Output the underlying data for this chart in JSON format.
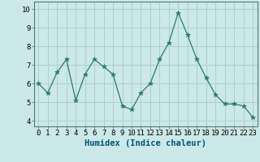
{
  "x": [
    0,
    1,
    2,
    3,
    4,
    5,
    6,
    7,
    8,
    9,
    10,
    11,
    12,
    13,
    14,
    15,
    16,
    17,
    18,
    19,
    20,
    21,
    22,
    23
  ],
  "y": [
    6.0,
    5.5,
    6.6,
    7.3,
    5.1,
    6.5,
    7.3,
    6.9,
    6.5,
    4.8,
    4.6,
    5.5,
    6.0,
    7.3,
    8.2,
    9.8,
    8.6,
    7.3,
    6.3,
    5.4,
    4.9,
    4.9,
    4.8,
    4.2
  ],
  "line_color": "#2d7a6e",
  "marker": "*",
  "marker_size": 4,
  "bg_color": "#cce8e8",
  "grid_color": "#aacccc",
  "xlabel": "Humidex (Indice chaleur)",
  "xlabel_color": "#005577",
  "xlabel_fontsize": 7.5,
  "xtick_labels": [
    "0",
    "1",
    "2",
    "3",
    "4",
    "5",
    "6",
    "7",
    "8",
    "9",
    "10",
    "11",
    "12",
    "13",
    "14",
    "15",
    "16",
    "17",
    "18",
    "19",
    "20",
    "21",
    "22",
    "23"
  ],
  "ytick_labels": [
    "4",
    "5",
    "6",
    "7",
    "8",
    "9",
    "10"
  ],
  "yticks": [
    4,
    5,
    6,
    7,
    8,
    9,
    10
  ],
  "ylim": [
    3.7,
    10.4
  ],
  "xlim": [
    -0.5,
    23.5
  ],
  "tick_fontsize": 6.5,
  "spine_color": "#557777"
}
